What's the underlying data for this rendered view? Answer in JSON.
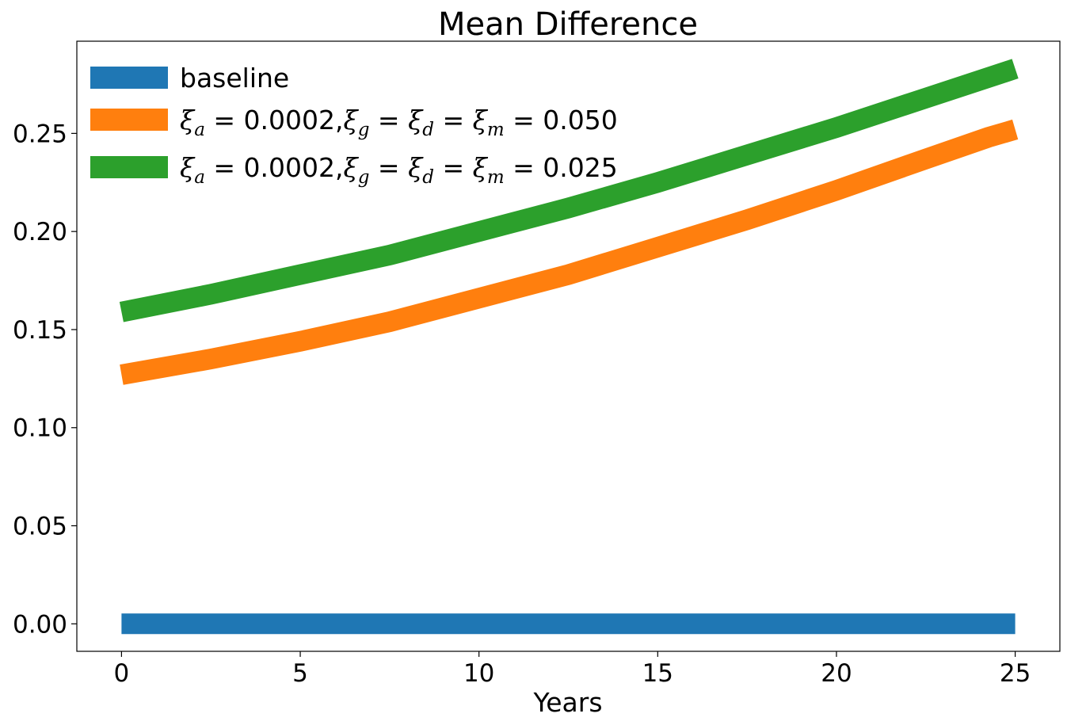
{
  "chart_data": {
    "type": "line",
    "title": "Mean Difference",
    "xlabel": "Years",
    "ylabel": "",
    "xlim": [
      -1.25,
      26.25
    ],
    "ylim": [
      -0.014,
      0.297
    ],
    "xticks": [
      0,
      5,
      10,
      15,
      20,
      25
    ],
    "yticks": [
      0.0,
      0.05,
      0.1,
      0.15,
      0.2,
      0.25
    ],
    "xtick_labels": [
      "0",
      "5",
      "10",
      "15",
      "20",
      "25"
    ],
    "ytick_labels": [
      "0.00",
      "0.05",
      "0.10",
      "0.15",
      "0.20",
      "0.25"
    ],
    "grid": false,
    "legend_position": "top-left",
    "series": [
      {
        "name": "baseline",
        "color": "#1f77b4",
        "x": [
          0,
          2.5,
          5,
          7.5,
          10,
          12.5,
          15,
          17.5,
          20,
          22.5,
          25
        ],
        "y": [
          0.0,
          0.0,
          0.0,
          0.0,
          0.0,
          0.0,
          0.0,
          0.0,
          0.0,
          0.0,
          0.0
        ]
      },
      {
        "name": "ξa = 0.0002,ξg = ξd = ξm = 0.050",
        "color": "#ff7f0e",
        "x": [
          0,
          2.5,
          5,
          7.5,
          10,
          12.5,
          15,
          17.5,
          20,
          22.5,
          24.25,
          25
        ],
        "y": [
          0.127,
          0.135,
          0.144,
          0.154,
          0.166,
          0.178,
          0.192,
          0.206,
          0.221,
          0.237,
          0.248,
          0.252
        ]
      },
      {
        "name": "ξa = 0.0002,ξg = ξd = ξm = 0.025",
        "color": "#2ca02c",
        "x": [
          0,
          2.5,
          5,
          7.5,
          10,
          12.5,
          15,
          17.5,
          20,
          22.5,
          25
        ],
        "y": [
          0.159,
          0.168,
          0.178,
          0.188,
          0.2,
          0.212,
          0.225,
          0.239,
          0.253,
          0.268,
          0.283
        ]
      }
    ],
    "legend": [
      {
        "label_parts": [
          [
            "ξ",
            "it"
          ],
          [
            "a",
            "sub"
          ],
          [
            " = 0.0002,",
            "n"
          ],
          [
            "ξ",
            "it"
          ],
          [
            "g",
            "sub"
          ],
          [
            " = ",
            "n"
          ],
          [
            "ξ",
            "it"
          ],
          [
            "d",
            "sub"
          ],
          [
            " = ",
            "n"
          ],
          [
            "ξ",
            "it"
          ],
          [
            "m",
            "sub"
          ],
          [
            " = 0.050",
            "n"
          ]
        ]
      },
      {
        "label_parts": [
          [
            "ξ",
            "it"
          ],
          [
            "a",
            "sub"
          ],
          [
            " = 0.0002,",
            "n"
          ],
          [
            "ξ",
            "it"
          ],
          [
            "g",
            "sub"
          ],
          [
            " = ",
            "n"
          ],
          [
            "ξ",
            "it"
          ],
          [
            "d",
            "sub"
          ],
          [
            " = ",
            "n"
          ],
          [
            "ξ",
            "it"
          ],
          [
            "m",
            "sub"
          ],
          [
            " = 0.025",
            "n"
          ]
        ]
      }
    ]
  }
}
